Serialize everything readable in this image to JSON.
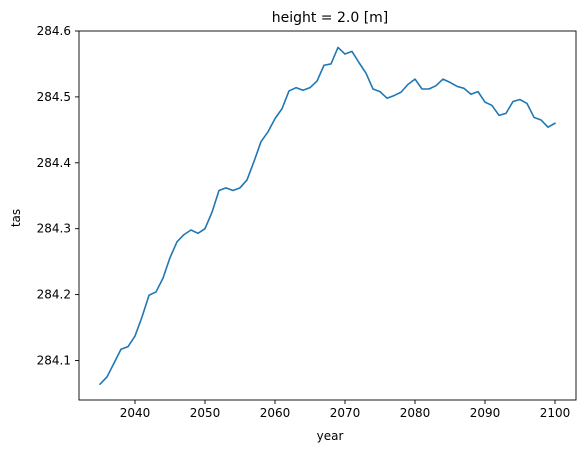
{
  "chart_data": {
    "type": "line",
    "title": "height = 2.0 [m]",
    "xlabel": "year",
    "ylabel": "tas",
    "xlim": [
      2032,
      2103
    ],
    "ylim": [
      284.04,
      284.6
    ],
    "xticks": [
      2040,
      2050,
      2060,
      2070,
      2080,
      2090,
      2100
    ],
    "xtick_labels": [
      "2040",
      "2050",
      "2060",
      "2070",
      "2080",
      "2090",
      "2100"
    ],
    "yticks": [
      284.1,
      284.2,
      284.3,
      284.4,
      284.5,
      284.6
    ],
    "ytick_labels": [
      "284.1",
      "284.2",
      "284.3",
      "284.4",
      "284.5",
      "284.6"
    ],
    "grid": false,
    "series": [
      {
        "color": "#1f77b4",
        "x": [
          2035,
          2036,
          2037,
          2038,
          2039,
          2040,
          2041,
          2042,
          2043,
          2044,
          2045,
          2046,
          2047,
          2048,
          2049,
          2050,
          2051,
          2052,
          2053,
          2054,
          2055,
          2056,
          2057,
          2058,
          2059,
          2060,
          2061,
          2062,
          2063,
          2064,
          2065,
          2066,
          2067,
          2068,
          2069,
          2070,
          2071,
          2072,
          2073,
          2074,
          2075,
          2076,
          2077,
          2078,
          2079,
          2080,
          2081,
          2082,
          2083,
          2084,
          2085,
          2086,
          2087,
          2088,
          2089,
          2090,
          2091,
          2092,
          2093,
          2094,
          2095,
          2096,
          2097,
          2098,
          2099,
          2100
        ],
        "y": [
          284.064,
          284.075,
          284.096,
          284.117,
          284.121,
          284.137,
          284.166,
          284.199,
          284.204,
          284.225,
          284.256,
          284.28,
          284.291,
          284.298,
          284.293,
          284.3,
          284.325,
          284.358,
          284.362,
          284.358,
          284.362,
          284.374,
          284.402,
          284.432,
          284.447,
          284.467,
          284.482,
          284.509,
          284.514,
          284.51,
          284.514,
          284.524,
          284.548,
          284.55,
          284.575,
          284.565,
          284.569,
          284.552,
          284.536,
          284.512,
          284.508,
          284.498,
          284.502,
          284.507,
          284.519,
          284.527,
          284.512,
          284.512,
          284.517,
          284.527,
          284.522,
          284.516,
          284.513,
          284.504,
          284.508,
          284.492,
          284.487,
          284.472,
          284.475,
          284.493,
          284.496,
          284.49,
          284.469,
          284.465,
          284.454,
          284.46
        ]
      }
    ]
  }
}
